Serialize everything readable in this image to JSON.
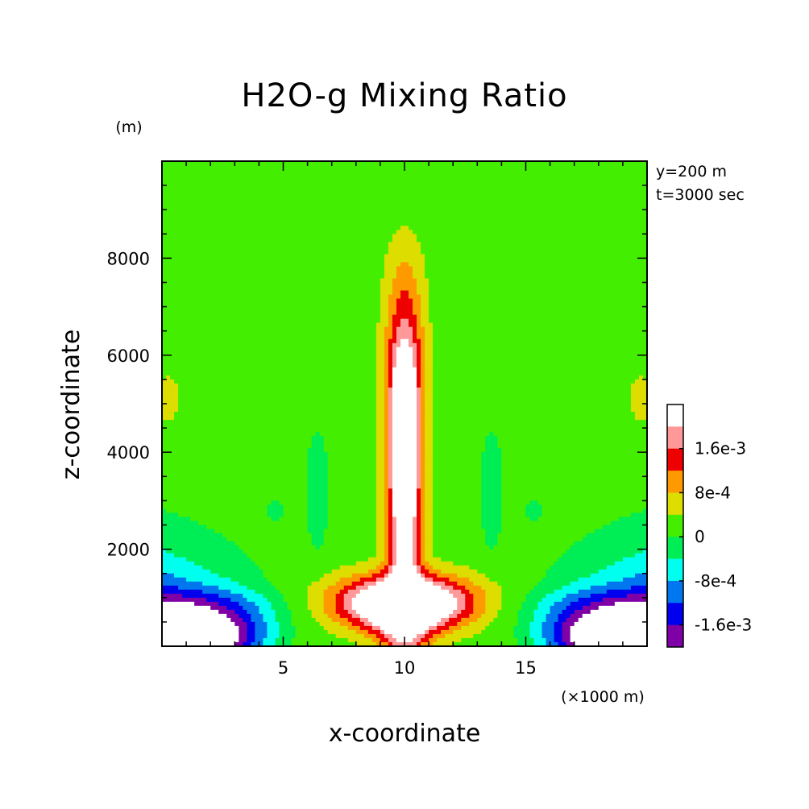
{
  "chart_data": {
    "type": "heatmap",
    "title": "H2O-g Mixing Ratio",
    "xlabel": "x-coordinate",
    "ylabel": "z-coordinate",
    "x_unit": "(×1000 m)",
    "y_unit": "(m)",
    "annotations": [
      "y=200 m",
      "t=3000 sec"
    ],
    "xlim": [
      0,
      20
    ],
    "ylim": [
      0,
      10000
    ],
    "x_ticks": [
      5,
      10,
      15
    ],
    "x_tick_labels": [
      "5",
      "10",
      "15"
    ],
    "y_ticks": [
      2000,
      4000,
      6000,
      8000
    ],
    "y_tick_labels": [
      "2000",
      "4000",
      "6000",
      "8000"
    ],
    "levels": [
      -0.002,
      -0.0016,
      -0.0012,
      -0.0008,
      -0.0004,
      0,
      0.0004,
      0.0008,
      0.0012,
      0.0016,
      0.002
    ],
    "colorbar_labels": [
      "1.6e-3",
      "8e-4",
      "0",
      "-8e-4",
      "-1.6e-3"
    ],
    "colorbar_label_values": [
      0.0016,
      0.0008,
      0,
      -0.0008,
      -0.0016
    ],
    "band_colors": [
      "#7f00a6",
      "#0000ee",
      "#0077ee",
      "#00ffee",
      "#00ee55",
      "#44ee00",
      "#dddd00",
      "#ff9900",
      "#ee0000",
      "#ff9999"
    ],
    "above_max_color": "#ffffff",
    "below_min_color": "#ffffff",
    "legend_position": "right",
    "grid": false
  }
}
